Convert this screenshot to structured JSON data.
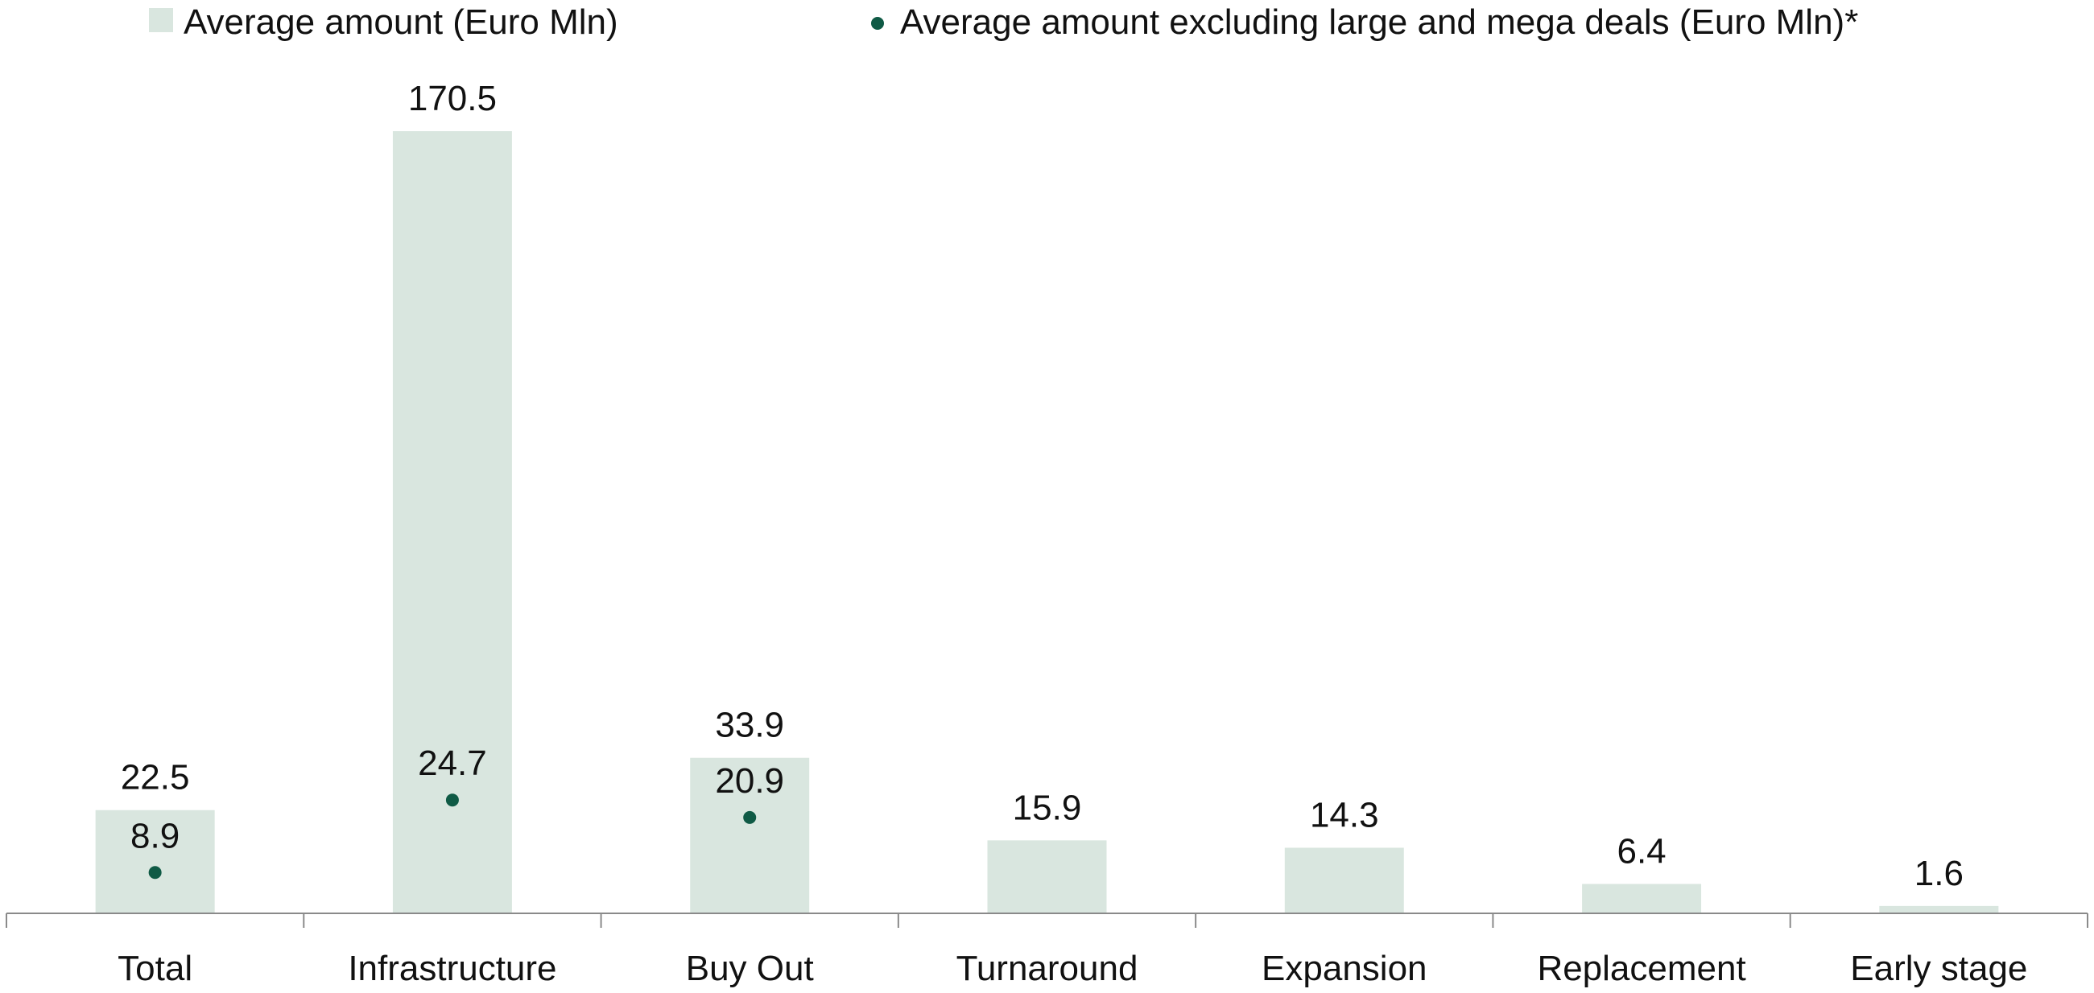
{
  "chart_data": {
    "type": "bar",
    "categories": [
      "Total",
      "Infrastructure",
      "Buy Out",
      "Turnaround",
      "Expansion",
      "Replacement",
      "Early stage"
    ],
    "series": [
      {
        "name": "Average amount (Euro Mln)",
        "kind": "bar",
        "color": "#d9e6df",
        "values": [
          22.5,
          170.5,
          33.9,
          15.9,
          14.3,
          6.4,
          1.6
        ],
        "labels": [
          "22.5",
          "170.5",
          "33.9",
          "15.9",
          "14.3",
          "6.4",
          "1.6"
        ]
      },
      {
        "name": "Average amount excluding large and mega deals (Euro Mln)*",
        "kind": "point",
        "color": "#0f5a45",
        "values": [
          8.9,
          24.7,
          20.9,
          null,
          null,
          null,
          null
        ],
        "labels": [
          "8.9",
          "24.7",
          "20.9",
          "",
          "",
          "",
          ""
        ]
      }
    ],
    "ylim": [
      0,
      170.5
    ],
    "legend_position": "top",
    "grid": false
  }
}
